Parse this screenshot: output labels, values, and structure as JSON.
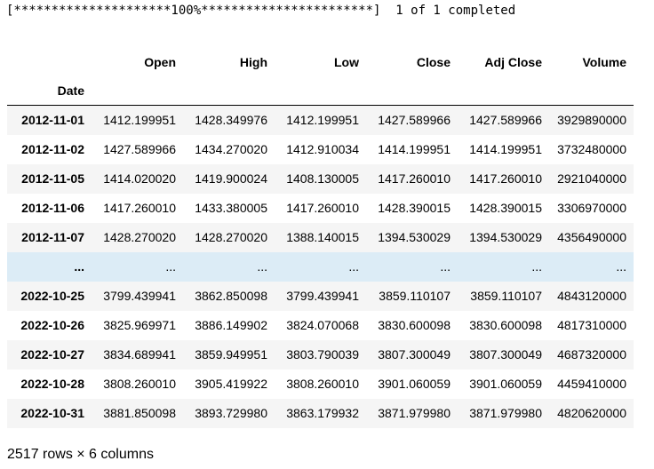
{
  "progress_text": "[*********************100%***********************]  1 of 1 completed",
  "table": {
    "columns": [
      "Open",
      "High",
      "Low",
      "Close",
      "Adj Close",
      "Volume"
    ],
    "index_name": "Date",
    "rows": [
      {
        "date": "2012-11-01",
        "values": [
          "1412.199951",
          "1428.349976",
          "1412.199951",
          "1427.589966",
          "1427.589966",
          "3929890000"
        ]
      },
      {
        "date": "2012-11-02",
        "values": [
          "1427.589966",
          "1434.270020",
          "1412.910034",
          "1414.199951",
          "1414.199951",
          "3732480000"
        ]
      },
      {
        "date": "2012-11-05",
        "values": [
          "1414.020020",
          "1419.900024",
          "1408.130005",
          "1417.260010",
          "1417.260010",
          "2921040000"
        ]
      },
      {
        "date": "2012-11-06",
        "values": [
          "1417.260010",
          "1433.380005",
          "1417.260010",
          "1428.390015",
          "1428.390015",
          "3306970000"
        ]
      },
      {
        "date": "2012-11-07",
        "values": [
          "1428.270020",
          "1428.270020",
          "1388.140015",
          "1394.530029",
          "1394.530029",
          "4356490000"
        ]
      },
      {
        "date": "...",
        "values": [
          "...",
          "...",
          "...",
          "...",
          "...",
          "..."
        ],
        "ellipsis": true
      },
      {
        "date": "2022-10-25",
        "values": [
          "3799.439941",
          "3862.850098",
          "3799.439941",
          "3859.110107",
          "3859.110107",
          "4843120000"
        ]
      },
      {
        "date": "2022-10-26",
        "values": [
          "3825.969971",
          "3886.149902",
          "3824.070068",
          "3830.600098",
          "3830.600098",
          "4817310000"
        ]
      },
      {
        "date": "2022-10-27",
        "values": [
          "3834.689941",
          "3859.949951",
          "3803.790039",
          "3807.300049",
          "3807.300049",
          "4687320000"
        ]
      },
      {
        "date": "2022-10-28",
        "values": [
          "3808.260010",
          "3905.419922",
          "3808.260010",
          "3901.060059",
          "3901.060059",
          "4459410000"
        ]
      },
      {
        "date": "2022-10-31",
        "values": [
          "3881.850098",
          "3893.729980",
          "3863.179932",
          "3871.979980",
          "3871.979980",
          "4820620000"
        ]
      }
    ]
  },
  "footer_text": "2517 rows × 6 columns"
}
